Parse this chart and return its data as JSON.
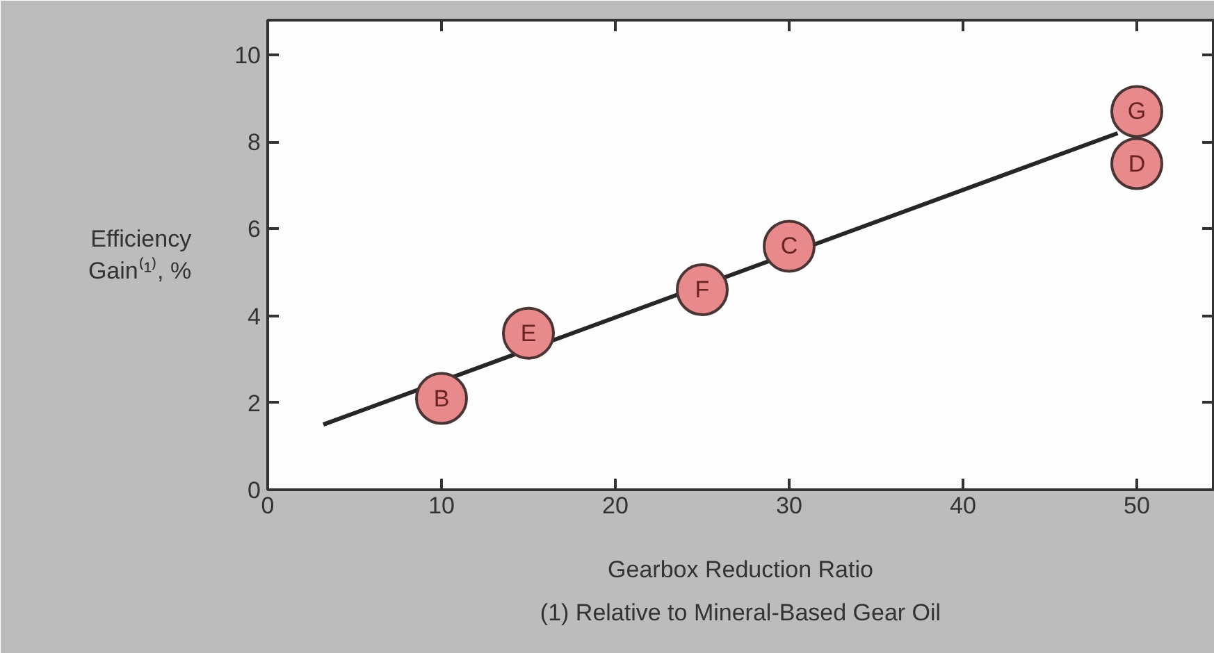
{
  "chart_data": {
    "type": "scatter",
    "xlabel": "Gearbox Reduction Ratio",
    "ylabel": "Efficiency\nGain⁽¹⁾, %",
    "xlim": [
      0,
      54.4
    ],
    "ylim": [
      0,
      10.8
    ],
    "xticks": [
      0,
      10,
      20,
      30,
      40,
      50
    ],
    "yticks": [
      0,
      2,
      4,
      6,
      8,
      10
    ],
    "grid": false,
    "line_style": "solid",
    "series": [
      {
        "type": "line",
        "x": [
          3.2,
          48.9
        ],
        "values": [
          1.5,
          8.2
        ],
        "color": "#262626"
      },
      {
        "x": [
          10,
          15,
          25,
          30,
          50,
          50
        ],
        "values": [
          2.1,
          3.6,
          4.6,
          5.6,
          8.7,
          7.5
        ],
        "color": "#e8898b",
        "marker": "circle"
      }
    ],
    "annotations": [
      {
        "text": "B",
        "x": 10,
        "y": 2.1
      },
      {
        "text": "E",
        "x": 15,
        "y": 3.6
      },
      {
        "text": "F",
        "x": 25,
        "y": 4.6
      },
      {
        "text": "C",
        "x": 30,
        "y": 5.6
      },
      {
        "text": "G",
        "x": 50,
        "y": 8.7
      },
      {
        "text": "D",
        "x": 50,
        "y": 7.5
      },
      "(1) Relative to Mineral-Based Gear Oil"
    ]
  }
}
